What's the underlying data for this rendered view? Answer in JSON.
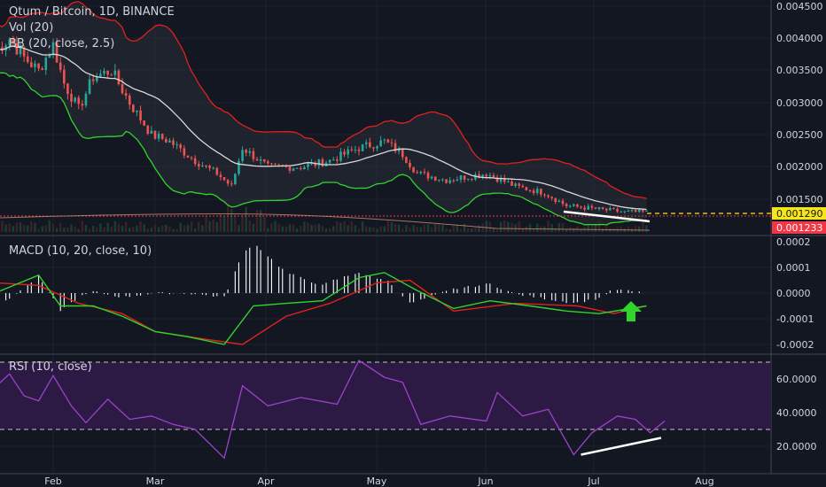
{
  "chart_data": {
    "type": "candlestick-with-indicators",
    "title": "Qtum / Bitcoin, 1D, BINANCE",
    "x_ticks": [
      "Feb",
      "Mar",
      "Apr",
      "May",
      "Jun",
      "Jul",
      "Aug"
    ],
    "price_panel": {
      "legend": [
        "Qtum / Bitcoin, 1D, BINANCE",
        "Vol (20)",
        "BB (20, close, 2.5)"
      ],
      "y_ticks": [
        "0.004500",
        "0.004000",
        "0.003500",
        "0.003000",
        "0.002500",
        "0.002000",
        "0.001500"
      ],
      "ylim": [
        0.00115,
        0.0046
      ],
      "last_price_label": "0.001290",
      "bb_lower_label": "0.001233",
      "colors": {
        "up": "#26a69a",
        "down": "#ef5350",
        "bb_band": "#e0221b",
        "bb_lower": "#31d42c",
        "bb_basis": "#d7d7d7",
        "last_price": "#f7e51c",
        "bb_price": "#f23645"
      },
      "price_path": [
        [
          "2018-01-16",
          0.0038
        ],
        [
          "2018-01-20",
          0.004
        ],
        [
          "2018-01-24",
          0.0037
        ],
        [
          "2018-01-28",
          0.0035
        ],
        [
          "2018-02-01",
          0.0039
        ],
        [
          "2018-02-04",
          0.0033
        ],
        [
          "2018-02-08",
          0.0029
        ],
        [
          "2018-02-12",
          0.0034
        ],
        [
          "2018-02-17",
          0.0035
        ],
        [
          "2018-02-22",
          0.003
        ],
        [
          "2018-02-28",
          0.0025
        ],
        [
          "2018-03-05",
          0.0024
        ],
        [
          "2018-03-12",
          0.0021
        ],
        [
          "2018-03-18",
          0.0019
        ],
        [
          "2018-03-22",
          0.0017
        ],
        [
          "2018-03-25",
          0.0023
        ],
        [
          "2018-04-01",
          0.002
        ],
        [
          "2018-04-10",
          0.002
        ],
        [
          "2018-04-18",
          0.0021
        ],
        [
          "2018-04-26",
          0.0023
        ],
        [
          "2018-05-03",
          0.0024
        ],
        [
          "2018-05-08",
          0.0022
        ],
        [
          "2018-05-12",
          0.0019
        ],
        [
          "2018-05-20",
          0.0018
        ],
        [
          "2018-05-31",
          0.0019
        ],
        [
          "2018-06-08",
          0.0017
        ],
        [
          "2018-06-16",
          0.0016
        ],
        [
          "2018-06-22",
          0.0014
        ],
        [
          "2018-06-30",
          0.00135
        ],
        [
          "2018-07-08",
          0.0013
        ],
        [
          "2018-07-14",
          0.0013
        ]
      ]
    },
    "macd_panel": {
      "legend": "MACD (10, 20, close, 10)",
      "y_ticks": [
        "0.0002",
        "0.0001",
        "0.0000",
        "-0.0001",
        "-0.0002"
      ],
      "ylim": [
        -0.00022,
        0.0002
      ],
      "colors": {
        "macd": "#31d42c",
        "signal": "#e0221b",
        "histogram": "#ffffff",
        "arrow": "#31d42c"
      },
      "macd": [
        [
          "2018-01-16",
          0.0
        ],
        [
          "2018-01-28",
          7e-05
        ],
        [
          "2018-02-03",
          -5e-05
        ],
        [
          "2018-02-12",
          -5e-05
        ],
        [
          "2018-02-20",
          -9e-05
        ],
        [
          "2018-03-01",
          -0.00015
        ],
        [
          "2018-03-10",
          -0.00017
        ],
        [
          "2018-03-20",
          -0.0002
        ],
        [
          "2018-03-28",
          -5e-05
        ],
        [
          "2018-04-06",
          -4e-05
        ],
        [
          "2018-04-16",
          -3e-05
        ],
        [
          "2018-04-26",
          6e-05
        ],
        [
          "2018-05-03",
          8e-05
        ],
        [
          "2018-05-12",
          1e-05
        ],
        [
          "2018-05-22",
          -6e-05
        ],
        [
          "2018-06-01",
          -3e-05
        ],
        [
          "2018-06-12",
          -5e-05
        ],
        [
          "2018-06-22",
          -7e-05
        ],
        [
          "2018-07-01",
          -8e-05
        ],
        [
          "2018-07-14",
          -5e-05
        ]
      ],
      "signal": [
        [
          "2018-01-16",
          4e-05
        ],
        [
          "2018-01-28",
          3e-05
        ],
        [
          "2018-02-08",
          -4e-05
        ],
        [
          "2018-02-20",
          -8e-05
        ],
        [
          "2018-03-01",
          -0.00015
        ],
        [
          "2018-03-15",
          -0.00018
        ],
        [
          "2018-03-25",
          -0.0002
        ],
        [
          "2018-04-06",
          -9e-05
        ],
        [
          "2018-04-18",
          -4e-05
        ],
        [
          "2018-05-01",
          4e-05
        ],
        [
          "2018-05-10",
          5e-05
        ],
        [
          "2018-05-22",
          -7e-05
        ],
        [
          "2018-06-08",
          -4e-05
        ],
        [
          "2018-06-25",
          -5e-05
        ],
        [
          "2018-07-05",
          -8e-05
        ],
        [
          "2018-07-14",
          -5e-05
        ]
      ],
      "histogram_range": [
        -0.0001,
        7e-05
      ]
    },
    "rsi_panel": {
      "legend": "RSI (10, close)",
      "y_ticks": [
        "60.0000",
        "40.0000",
        "20.0000"
      ],
      "ylim": [
        12,
        75
      ],
      "upper_band": 70,
      "lower_band": 30,
      "colors": {
        "rsi": "#9a43c9",
        "band_fill": "#3a1d5a",
        "band_line": "#c5c5c5",
        "trendline": "#ffffff"
      },
      "rsi": [
        [
          "2018-01-16",
          55
        ],
        [
          "2018-01-20",
          63
        ],
        [
          "2018-01-24",
          50
        ],
        [
          "2018-01-28",
          47
        ],
        [
          "2018-02-01",
          62
        ],
        [
          "2018-02-06",
          44
        ],
        [
          "2018-02-10",
          34
        ],
        [
          "2018-02-16",
          48
        ],
        [
          "2018-02-22",
          36
        ],
        [
          "2018-02-28",
          38
        ],
        [
          "2018-03-06",
          33
        ],
        [
          "2018-03-12",
          30
        ],
        [
          "2018-03-20",
          13
        ],
        [
          "2018-03-25",
          56
        ],
        [
          "2018-04-01",
          44
        ],
        [
          "2018-04-10",
          49
        ],
        [
          "2018-04-20",
          45
        ],
        [
          "2018-04-26",
          71
        ],
        [
          "2018-05-03",
          61
        ],
        [
          "2018-05-08",
          58
        ],
        [
          "2018-05-13",
          33
        ],
        [
          "2018-05-21",
          38
        ],
        [
          "2018-05-31",
          35
        ],
        [
          "2018-06-03",
          52
        ],
        [
          "2018-06-10",
          38
        ],
        [
          "2018-06-17",
          42
        ],
        [
          "2018-06-24",
          15
        ],
        [
          "2018-06-29",
          28
        ],
        [
          "2018-07-06",
          38
        ],
        [
          "2018-07-11",
          36
        ],
        [
          "2018-07-15",
          28
        ],
        [
          "2018-07-19",
          35
        ]
      ],
      "trendline": [
        [
          "2018-06-26",
          15
        ],
        [
          "2018-07-18",
          25
        ]
      ]
    }
  }
}
